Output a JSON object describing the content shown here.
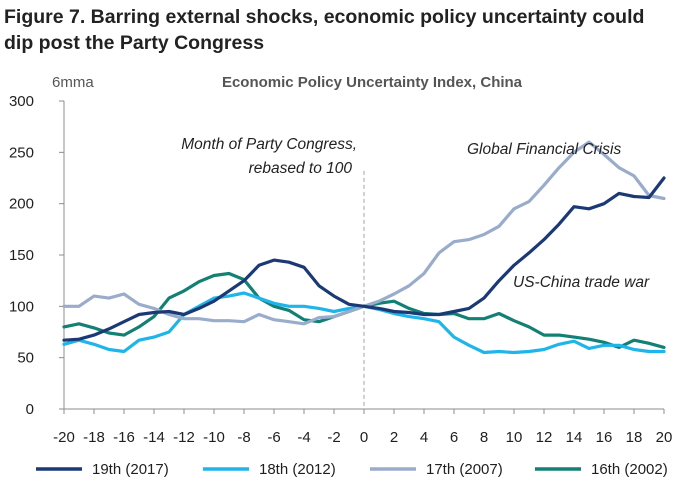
{
  "figure": {
    "title_line1": "Figure 7. Barring external shocks, economic policy uncertainty could",
    "title_line2": "dip post the Party Congress"
  },
  "chart_data": {
    "type": "line",
    "title": "Economic Policy Uncertainty Index, China",
    "unit_label": "6mma",
    "xlabel": "",
    "ylabel": "",
    "xlim": [
      -20,
      20
    ],
    "ylim": [
      0,
      300
    ],
    "x_ticks": [
      -20,
      -18,
      -16,
      -14,
      -12,
      -10,
      -8,
      -6,
      -4,
      -2,
      0,
      2,
      4,
      6,
      8,
      10,
      12,
      14,
      16,
      18,
      20
    ],
    "y_ticks": [
      0,
      50,
      100,
      150,
      200,
      250,
      300
    ],
    "grid": false,
    "legend_position": "bottom",
    "x": [
      -20,
      -19,
      -18,
      -17,
      -16,
      -15,
      -14,
      -13,
      -12,
      -11,
      -10,
      -9,
      -8,
      -7,
      -6,
      -5,
      -4,
      -3,
      -2,
      -1,
      0,
      1,
      2,
      3,
      4,
      5,
      6,
      7,
      8,
      9,
      10,
      11,
      12,
      13,
      14,
      15,
      16,
      17,
      18,
      19,
      20
    ],
    "series": [
      {
        "name": "19th (2017)",
        "color": "#1b3a75",
        "values": [
          67,
          68,
          72,
          78,
          85,
          92,
          94,
          95,
          92,
          98,
          105,
          115,
          125,
          140,
          145,
          143,
          138,
          120,
          110,
          102,
          100,
          98,
          95,
          94,
          92,
          92,
          95,
          98,
          108,
          125,
          140,
          152,
          165,
          180,
          197,
          195,
          200,
          210,
          207,
          206,
          225
        ]
      },
      {
        "name": "18th (2012)",
        "color": "#1fb5ea",
        "values": [
          63,
          67,
          63,
          58,
          56,
          67,
          70,
          75,
          92,
          100,
          108,
          110,
          113,
          108,
          103,
          100,
          100,
          98,
          95,
          98,
          100,
          97,
          93,
          90,
          88,
          85,
          70,
          62,
          55,
          56,
          55,
          56,
          58,
          63,
          66,
          59,
          62,
          62,
          58,
          56,
          56
        ]
      },
      {
        "name": "17th (2007)",
        "color": "#9aaccb",
        "values": [
          100,
          100,
          110,
          108,
          112,
          102,
          98,
          92,
          88,
          88,
          86,
          86,
          85,
          92,
          87,
          85,
          83,
          89,
          90,
          95,
          100,
          105,
          112,
          120,
          132,
          152,
          163,
          165,
          170,
          178,
          195,
          202,
          218,
          235,
          250,
          260,
          248,
          235,
          227,
          208,
          205
        ]
      },
      {
        "name": "16th (2002)",
        "color": "#138076",
        "values": [
          80,
          83,
          79,
          74,
          72,
          80,
          90,
          108,
          115,
          124,
          130,
          132,
          126,
          108,
          100,
          96,
          87,
          85,
          90,
          95,
          100,
          103,
          105,
          98,
          93,
          92,
          93,
          88,
          88,
          93,
          86,
          80,
          72,
          72,
          70,
          68,
          65,
          60,
          67,
          64,
          60
        ]
      }
    ],
    "annotations": {
      "party_congress_line1": "Month of Party Congress,",
      "party_congress_line2": "rebased to 100",
      "gfc": "Global Financial Crisis",
      "trade_war": "US-China trade war"
    }
  }
}
